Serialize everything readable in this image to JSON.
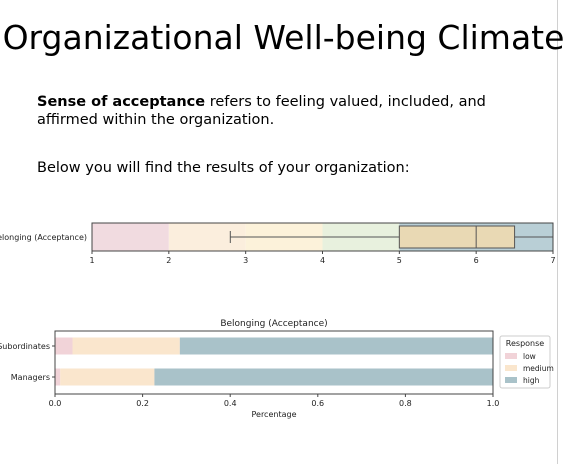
{
  "slide": {
    "title": "Organizational Well-being Climate",
    "definition_bold": "Sense of acceptance",
    "definition_rest": " refers to feeling valued, included, and affirmed within the organization.",
    "intro": "Below you will find the results of your organization:"
  },
  "chart_data": [
    {
      "type": "box",
      "category": "Belonging (Acceptance)",
      "xlim": [
        1,
        7
      ],
      "xticks": [
        1,
        2,
        3,
        4,
        5,
        6,
        7
      ],
      "bands": [
        {
          "from": 1,
          "to": 2,
          "color": "#f1dbe0"
        },
        {
          "from": 2,
          "to": 3,
          "color": "#fbeedd"
        },
        {
          "from": 3,
          "to": 4,
          "color": "#fcf2da"
        },
        {
          "from": 4,
          "to": 5,
          "color": "#e8f1de"
        },
        {
          "from": 5,
          "to": 7,
          "color": "#b9cfd6"
        }
      ],
      "box": {
        "whisker_low": 2.8,
        "q1": 5.0,
        "median": 6.0,
        "q3": 6.5,
        "whisker_high": 7.0,
        "fill": "#e9d9b4"
      }
    },
    {
      "type": "bar",
      "orientation": "horizontal",
      "stacked": true,
      "title": "Belonging (Acceptance)",
      "xlabel": "Percentage",
      "xlim": [
        0.0,
        1.0
      ],
      "xticks": [
        "0.0",
        "0.2",
        "0.4",
        "0.6",
        "0.8",
        "1.0"
      ],
      "categories": [
        "Subordinates",
        "Managers"
      ],
      "series": [
        {
          "name": "low",
          "color": "#f1d3d8",
          "values": [
            0.04,
            0.012
          ]
        },
        {
          "name": "medium",
          "color": "#fae6cd",
          "values": [
            0.245,
            0.215
          ]
        },
        {
          "name": "high",
          "color": "#a9c2c9",
          "values": [
            0.715,
            0.773
          ]
        }
      ],
      "legend": {
        "title": "Response",
        "placement": "right"
      }
    }
  ]
}
